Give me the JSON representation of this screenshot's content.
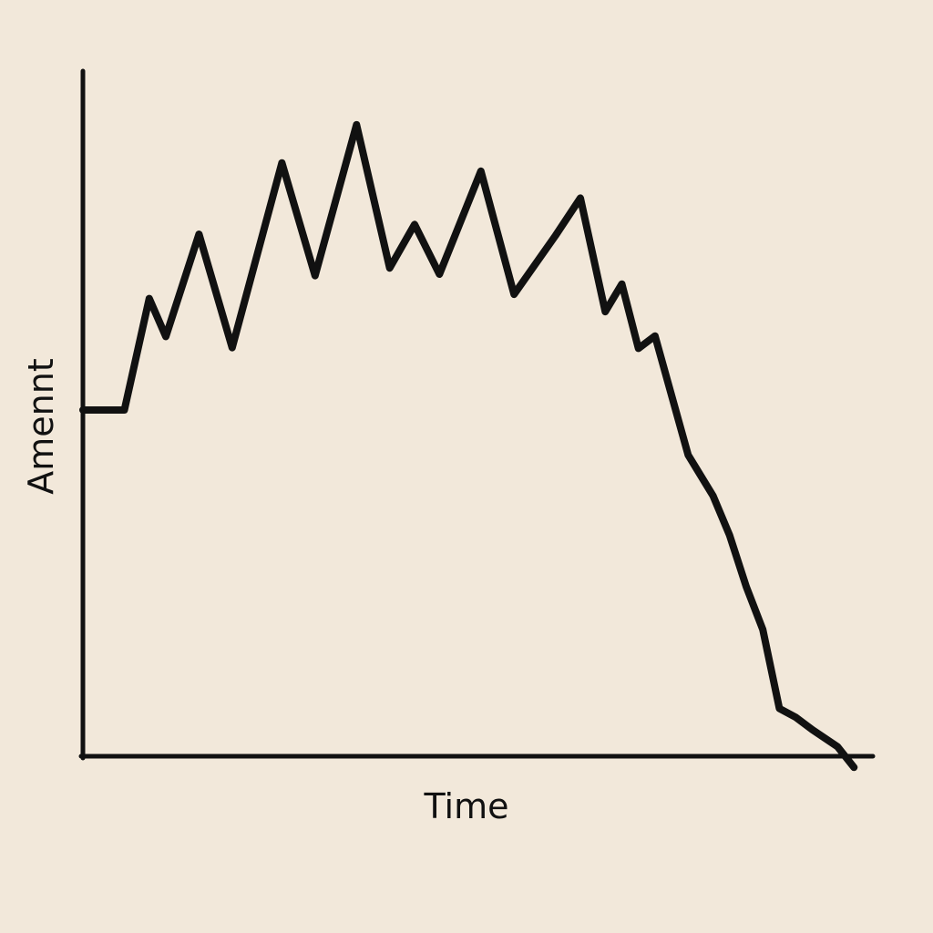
{
  "chart_data": {
    "type": "line",
    "title": "",
    "xlabel": "Time",
    "ylabel": "Amennt",
    "xlim": [
      0,
      100
    ],
    "ylim": [
      0,
      100
    ],
    "grid": false,
    "legend": "none",
    "line_color": "#111111",
    "background_color": "#f2e8da",
    "series": [
      {
        "values": [
          [
            0,
            50.0
          ],
          [
            5,
            50.0
          ],
          [
            8,
            66.1
          ],
          [
            10,
            60.6
          ],
          [
            14,
            75.4
          ],
          [
            18,
            59.0
          ],
          [
            24,
            85.7
          ],
          [
            28,
            69.4
          ],
          [
            33,
            91.2
          ],
          [
            37,
            70.5
          ],
          [
            40,
            76.8
          ],
          [
            43,
            69.6
          ],
          [
            48,
            84.5
          ],
          [
            52,
            66.7
          ],
          [
            57,
            75.2
          ],
          [
            60,
            80.6
          ],
          [
            63,
            64.2
          ],
          [
            65,
            68.2
          ],
          [
            67,
            58.9
          ],
          [
            69,
            60.7
          ],
          [
            73,
            43.5
          ],
          [
            76,
            37.6
          ],
          [
            78,
            31.9
          ],
          [
            80,
            24.5
          ],
          [
            82,
            18.3
          ],
          [
            84,
            6.9
          ],
          [
            86,
            5.6
          ],
          [
            88,
            3.8
          ],
          [
            91,
            1.4
          ],
          [
            93,
            -1.6
          ]
        ]
      }
    ]
  }
}
